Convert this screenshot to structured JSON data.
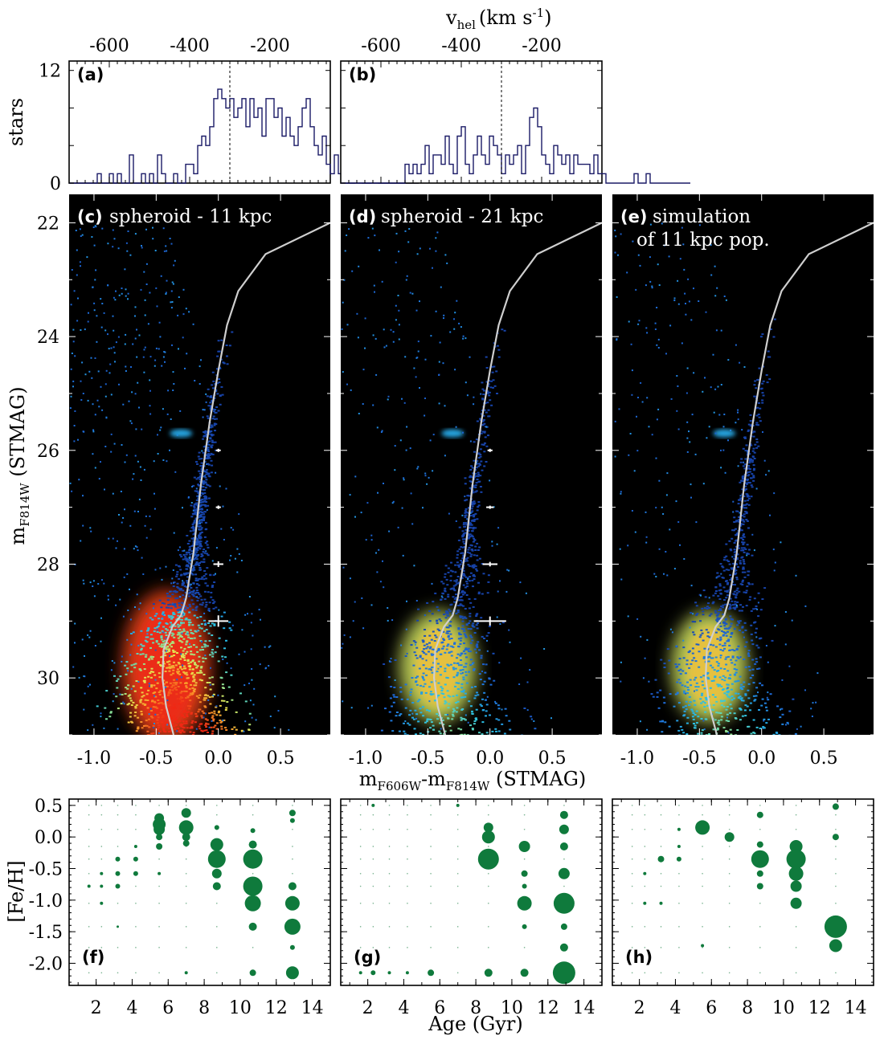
{
  "figure": {
    "top_axis_label": "v",
    "top_axis_label_sub": "hel",
    "top_axis_label_unit": "(km s",
    "top_axis_label_sup": "-1",
    "top_axis_label_close": ")",
    "y_label_hist": "stars",
    "y_label_cmd_main": "m",
    "y_label_cmd_sub": "F814W",
    "y_label_cmd_tail": " (STMAG)",
    "x_label_cmd_a": "m",
    "x_label_cmd_a_sub": "F606W",
    "x_label_cmd_b": "-m",
    "x_label_cmd_b_sub": "F814W",
    "x_label_cmd_tail": " (STMAG)",
    "y_label_age": "[Fe/H]",
    "x_label_age": "Age (Gyr)"
  },
  "chart_data": [
    {
      "type": "bar",
      "panel": "a",
      "tag": "(a)",
      "xlim": [
        -700,
        -50
      ],
      "ylim": [
        0,
        13
      ],
      "x_ticks": [
        "-600",
        "-400",
        "-200"
      ],
      "y_ticks": [
        "0",
        "12"
      ],
      "x_mark": -300,
      "bin_start": -700,
      "bin_width": 10,
      "counts": [
        0,
        0,
        0,
        0,
        0,
        0,
        0,
        1,
        0,
        0,
        1,
        0,
        1,
        0,
        0,
        3,
        0,
        0,
        1,
        0,
        1,
        0,
        3,
        1,
        0,
        0,
        1,
        0,
        0,
        2,
        2,
        1,
        4,
        5,
        4,
        6,
        9,
        10,
        9,
        8,
        9,
        7,
        8,
        9,
        6,
        9,
        7,
        8,
        5,
        9,
        9,
        7,
        8,
        5,
        7,
        5,
        4,
        6,
        8,
        9,
        6,
        4,
        3,
        5,
        2,
        1,
        3,
        1,
        3,
        0,
        0,
        1,
        1,
        0,
        0,
        1,
        1,
        0,
        0,
        0,
        0,
        0,
        0,
        0,
        0,
        0,
        0
      ]
    },
    {
      "type": "bar",
      "panel": "b",
      "tag": "(b)",
      "xlim": [
        -700,
        -50
      ],
      "ylim": [
        0,
        13
      ],
      "x_ticks": [
        "-600",
        "-400",
        "-200"
      ],
      "x_mark": -300,
      "bin_start": -700,
      "bin_width": 10,
      "counts": [
        0,
        0,
        0,
        0,
        0,
        0,
        0,
        0,
        0,
        0,
        0,
        0,
        0,
        0,
        0,
        0,
        2,
        1,
        2,
        1,
        2,
        4,
        1,
        3,
        3,
        2,
        5,
        2,
        1,
        5,
        6,
        2,
        1,
        3,
        5,
        3,
        2,
        5,
        4,
        3,
        1,
        3,
        2,
        3,
        4,
        1,
        4,
        7,
        8,
        6,
        3,
        2,
        1,
        4,
        3,
        2,
        3,
        1,
        3,
        2,
        2,
        2,
        1,
        3,
        1,
        1,
        0,
        0,
        0,
        0,
        0,
        0,
        0,
        1,
        0,
        0,
        1,
        0,
        0,
        0,
        0,
        0,
        0,
        0,
        0,
        0,
        0
      ]
    },
    {
      "type": "heatmap",
      "panel": "c",
      "tag": "(c)",
      "title": "spheroid - 11 kpc",
      "xlim": [
        -1.2,
        0.9
      ],
      "ylim": [
        31.0,
        21.5
      ],
      "x_ticks": [
        "-1.0",
        "-0.5",
        "0.0",
        "0.5"
      ],
      "y_ticks": [
        "22",
        "24",
        "26",
        "28",
        "30"
      ],
      "density": "high",
      "error_bars": [
        {
          "mag": 26.0,
          "xerr": 0.01,
          "yerr": 0.02
        },
        {
          "mag": 27.0,
          "xerr": 0.02,
          "yerr": 0.03
        },
        {
          "mag": 28.0,
          "xerr": 0.04,
          "yerr": 0.05
        },
        {
          "mag": 29.0,
          "xerr": 0.08,
          "yerr": 0.1
        }
      ],
      "isochrone": [
        [
          0.9,
          22.0
        ],
        [
          0.38,
          22.55
        ],
        [
          0.16,
          23.2
        ],
        [
          0.07,
          23.8
        ],
        [
          0.0,
          24.6
        ],
        [
          -0.07,
          25.5
        ],
        [
          -0.14,
          26.6
        ],
        [
          -0.2,
          27.8
        ],
        [
          -0.26,
          28.6
        ],
        [
          -0.3,
          28.9
        ],
        [
          -0.37,
          29.1
        ],
        [
          -0.44,
          29.5
        ],
        [
          -0.45,
          30.0
        ],
        [
          -0.42,
          30.5
        ],
        [
          -0.36,
          31.0
        ]
      ]
    },
    {
      "type": "heatmap",
      "panel": "d",
      "tag": "(d)",
      "title": "spheroid - 21 kpc",
      "xlim": [
        -1.2,
        0.9
      ],
      "ylim": [
        31.0,
        21.5
      ],
      "x_ticks": [
        "-1.0",
        "-0.5",
        "0.0",
        "0.5"
      ],
      "density": "medium",
      "error_bars": [
        {
          "mag": 26.0,
          "xerr": 0.02,
          "yerr": 0.02
        },
        {
          "mag": 27.0,
          "xerr": 0.03,
          "yerr": 0.02
        },
        {
          "mag": 28.0,
          "xerr": 0.06,
          "yerr": 0.04
        },
        {
          "mag": 29.0,
          "xerr": 0.13,
          "yerr": 0.08
        }
      ],
      "isochrone": [
        [
          0.9,
          22.0
        ],
        [
          0.38,
          22.55
        ],
        [
          0.16,
          23.2
        ],
        [
          0.07,
          23.8
        ],
        [
          0.0,
          24.6
        ],
        [
          -0.07,
          25.5
        ],
        [
          -0.14,
          26.6
        ],
        [
          -0.2,
          27.8
        ],
        [
          -0.26,
          28.6
        ],
        [
          -0.3,
          28.9
        ],
        [
          -0.37,
          29.1
        ],
        [
          -0.44,
          29.5
        ],
        [
          -0.45,
          30.0
        ],
        [
          -0.42,
          30.5
        ],
        [
          -0.36,
          31.0
        ]
      ]
    },
    {
      "type": "heatmap",
      "panel": "e",
      "tag": "(e)",
      "title": "simulation",
      "title_line2": "of 11 kpc pop.",
      "xlim": [
        -1.2,
        0.9
      ],
      "ylim": [
        31.0,
        21.5
      ],
      "x_ticks": [
        "-1.0",
        "-0.5",
        "0.0",
        "0.5"
      ],
      "density": "medium",
      "error_bars": [],
      "isochrone": [
        [
          0.9,
          22.0
        ],
        [
          0.38,
          22.55
        ],
        [
          0.16,
          23.2
        ],
        [
          0.07,
          23.8
        ],
        [
          0.0,
          24.6
        ],
        [
          -0.07,
          25.5
        ],
        [
          -0.14,
          26.6
        ],
        [
          -0.2,
          27.8
        ],
        [
          -0.26,
          28.6
        ],
        [
          -0.3,
          28.9
        ],
        [
          -0.37,
          29.1
        ],
        [
          -0.44,
          29.5
        ],
        [
          -0.45,
          30.0
        ],
        [
          -0.42,
          30.5
        ],
        [
          -0.36,
          31.0
        ]
      ]
    },
    {
      "type": "scatter",
      "panel": "f",
      "tag": "(f)",
      "xlim": [
        0.5,
        15.0
      ],
      "ylim": [
        -2.35,
        0.6
      ],
      "x_ticks": [
        "2",
        "4",
        "6",
        "8",
        "10",
        "12",
        "14"
      ],
      "y_ticks": [
        "0.5",
        "0.0",
        "-0.5",
        "-1.0",
        "-1.5",
        "-2.0"
      ],
      "points": [
        [
          5.5,
          0.3,
          6
        ],
        [
          5.5,
          0.2,
          8
        ],
        [
          5.5,
          0.12,
          7
        ],
        [
          5.5,
          0.0,
          4
        ],
        [
          5.5,
          -0.15,
          4
        ],
        [
          7.0,
          0.38,
          6
        ],
        [
          7.0,
          0.15,
          9
        ],
        [
          7.0,
          0.0,
          5
        ],
        [
          7.0,
          -0.1,
          4
        ],
        [
          8.7,
          0.15,
          3
        ],
        [
          8.7,
          -0.12,
          8
        ],
        [
          8.7,
          -0.35,
          11
        ],
        [
          8.7,
          -0.58,
          6
        ],
        [
          8.7,
          -0.78,
          5
        ],
        [
          10.7,
          0.1,
          3
        ],
        [
          10.7,
          -0.12,
          5
        ],
        [
          10.7,
          -0.35,
          12
        ],
        [
          10.7,
          -0.78,
          12
        ],
        [
          10.7,
          -1.05,
          10
        ],
        [
          10.7,
          -1.42,
          5
        ],
        [
          10.7,
          -2.15,
          4
        ],
        [
          12.9,
          0.38,
          4
        ],
        [
          12.9,
          0.26,
          3
        ],
        [
          12.9,
          -0.78,
          5
        ],
        [
          12.9,
          -1.05,
          9
        ],
        [
          12.9,
          -1.42,
          10
        ],
        [
          12.9,
          -1.75,
          3
        ],
        [
          12.9,
          -2.15,
          8
        ],
        [
          3.2,
          -0.35,
          3
        ],
        [
          3.2,
          -0.58,
          3
        ],
        [
          3.2,
          -0.78,
          3
        ],
        [
          4.2,
          -0.35,
          3
        ],
        [
          4.2,
          -0.58,
          3
        ],
        [
          4.2,
          -0.15,
          2
        ],
        [
          1.6,
          -0.78,
          2
        ],
        [
          2.3,
          -0.78,
          2
        ],
        [
          2.3,
          -0.58,
          2
        ],
        [
          2.3,
          -1.05,
          2
        ],
        [
          3.2,
          -1.42,
          1.5
        ],
        [
          5.5,
          -0.58,
          2
        ],
        [
          7.0,
          -2.15,
          2
        ]
      ]
    },
    {
      "type": "scatter",
      "panel": "g",
      "tag": "(g)",
      "xlim": [
        0.5,
        15.0
      ],
      "ylim": [
        -2.35,
        0.6
      ],
      "x_ticks": [
        "2",
        "4",
        "6",
        "8",
        "10",
        "12",
        "14"
      ],
      "points": [
        [
          8.7,
          0.15,
          6
        ],
        [
          8.7,
          0.0,
          8
        ],
        [
          8.7,
          -0.35,
          13
        ],
        [
          10.7,
          -0.15,
          7
        ],
        [
          10.7,
          -0.58,
          4
        ],
        [
          10.7,
          -0.78,
          3
        ],
        [
          10.7,
          -1.05,
          9
        ],
        [
          10.7,
          -1.42,
          3
        ],
        [
          10.7,
          -2.15,
          5
        ],
        [
          12.9,
          0.35,
          5
        ],
        [
          12.9,
          0.12,
          6
        ],
        [
          12.9,
          -0.15,
          5
        ],
        [
          12.9,
          -0.58,
          7
        ],
        [
          12.9,
          -1.05,
          13
        ],
        [
          12.9,
          -1.42,
          4
        ],
        [
          12.9,
          -1.75,
          5
        ],
        [
          12.9,
          -2.15,
          14
        ],
        [
          8.7,
          -2.15,
          5
        ],
        [
          5.5,
          -2.15,
          4
        ],
        [
          2.3,
          -2.15,
          3
        ],
        [
          3.2,
          -2.15,
          2
        ],
        [
          4.2,
          -2.15,
          2
        ],
        [
          1.6,
          -2.15,
          2
        ],
        [
          7.0,
          0.5,
          2
        ],
        [
          2.3,
          0.5,
          2
        ]
      ]
    },
    {
      "type": "scatter",
      "panel": "h",
      "tag": "(h)",
      "xlim": [
        0.5,
        15.0
      ],
      "ylim": [
        -2.35,
        0.6
      ],
      "x_ticks": [
        "2",
        "4",
        "6",
        "8",
        "10",
        "12",
        "14"
      ],
      "points": [
        [
          5.5,
          0.15,
          9
        ],
        [
          7.0,
          0.0,
          6
        ],
        [
          8.7,
          0.35,
          4
        ],
        [
          8.7,
          -0.12,
          4
        ],
        [
          8.7,
          -0.35,
          11
        ],
        [
          8.7,
          -0.58,
          4
        ],
        [
          8.7,
          -0.78,
          4
        ],
        [
          10.7,
          -0.15,
          8
        ],
        [
          10.7,
          -0.35,
          12
        ],
        [
          10.7,
          -0.58,
          9
        ],
        [
          10.7,
          -0.78,
          7
        ],
        [
          10.7,
          -1.05,
          7
        ],
        [
          12.9,
          0.48,
          4
        ],
        [
          12.9,
          0.0,
          4
        ],
        [
          12.9,
          -1.42,
          14
        ],
        [
          12.9,
          -1.72,
          8
        ],
        [
          3.2,
          -0.35,
          4
        ],
        [
          4.2,
          -0.35,
          3
        ],
        [
          4.2,
          -0.15,
          2
        ],
        [
          4.2,
          0.12,
          2
        ],
        [
          2.3,
          -0.58,
          2
        ],
        [
          2.3,
          -1.05,
          2
        ],
        [
          3.2,
          -1.05,
          2
        ],
        [
          5.5,
          -1.72,
          2
        ]
      ]
    }
  ]
}
